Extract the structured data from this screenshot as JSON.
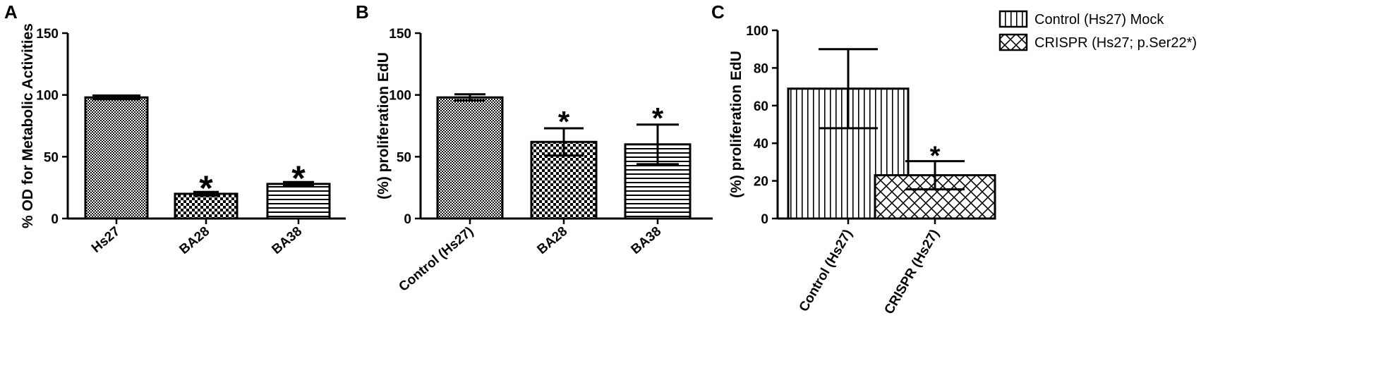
{
  "chart_data": [
    {
      "type": "bar",
      "panel": "A",
      "ylabel": "% OD for Metabolic Activities",
      "categories": [
        "Hs27",
        "BA28",
        "BA38"
      ],
      "values": [
        98,
        20,
        28
      ],
      "errors": [
        1.5,
        1.5,
        1.5
      ],
      "patterns": [
        "dense-check",
        "check",
        "hlines"
      ],
      "significance": [
        "",
        "*",
        "*"
      ],
      "ylim": [
        0,
        150
      ],
      "yticks": [
        0,
        50,
        100,
        150
      ]
    },
    {
      "type": "bar",
      "panel": "B",
      "ylabel": "(%) proliferation EdU",
      "categories": [
        "Control (Hs27)",
        "BA28",
        "BA38"
      ],
      "values": [
        98,
        62,
        60
      ],
      "errors": [
        2.5,
        11,
        16
      ],
      "patterns": [
        "dense-check",
        "check",
        "hlines"
      ],
      "significance": [
        "",
        "*",
        "*"
      ],
      "ylim": [
        0,
        150
      ],
      "yticks": [
        0,
        50,
        100,
        150
      ]
    },
    {
      "type": "bar",
      "panel": "C",
      "ylabel": "(%) proliferation EdU",
      "categories": [
        "Control (Hs27)",
        "CRISPR (Hs27)"
      ],
      "values": [
        69,
        23
      ],
      "errors": [
        21,
        7.5
      ],
      "patterns": [
        "vlines",
        "cross"
      ],
      "significance": [
        "",
        "*"
      ],
      "ylim": [
        0,
        100
      ],
      "yticks": [
        0,
        20,
        40,
        60,
        80,
        100
      ],
      "legend": [
        {
          "name": "Control (Hs27) Mock",
          "pattern": "vlines"
        },
        {
          "name": "CRISPR (Hs27; p.Ser22*)",
          "pattern": "cross"
        }
      ],
      "legend_position": "top-right"
    }
  ]
}
